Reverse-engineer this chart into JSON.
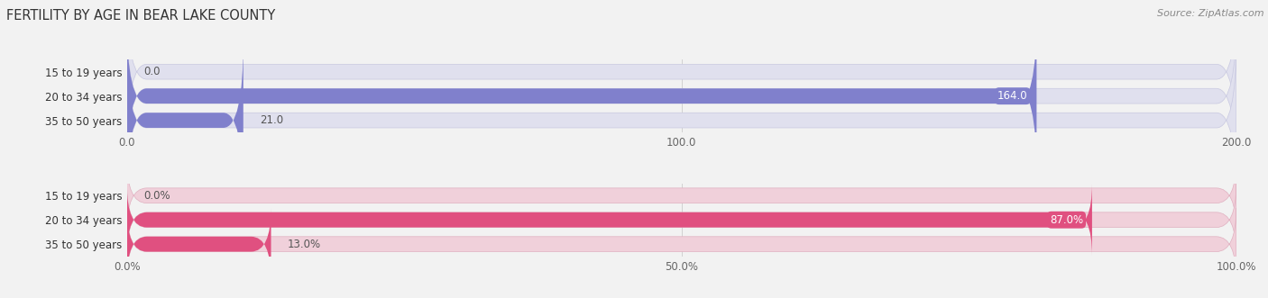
{
  "title": "FERTILITY BY AGE IN BEAR LAKE COUNTY",
  "source": "Source: ZipAtlas.com",
  "top_chart": {
    "categories": [
      "15 to 19 years",
      "20 to 34 years",
      "35 to 50 years"
    ],
    "values": [
      0.0,
      164.0,
      21.0
    ],
    "xlim": [
      0,
      200
    ],
    "xticks": [
      0.0,
      100.0,
      200.0
    ],
    "xtick_labels": [
      "0.0",
      "100.0",
      "200.0"
    ],
    "bar_color": "#8080cc",
    "bar_bg_color": "#e0e0ee",
    "bar_outline_color": "#c8c8e0"
  },
  "bottom_chart": {
    "categories": [
      "15 to 19 years",
      "20 to 34 years",
      "35 to 50 years"
    ],
    "values": [
      0.0,
      87.0,
      13.0
    ],
    "xlim": [
      0,
      100
    ],
    "xticks": [
      0.0,
      50.0,
      100.0
    ],
    "xtick_labels": [
      "0.0%",
      "50.0%",
      "100.0%"
    ],
    "bar_color": "#e05080",
    "bar_bg_color": "#f0d0da",
    "bar_outline_color": "#e0b0c0"
  },
  "bg_color": "#f2f2f2",
  "bar_height": 0.62,
  "label_fontsize": 8.5,
  "tick_fontsize": 8.5,
  "cat_fontsize": 8.5,
  "title_fontsize": 10.5
}
